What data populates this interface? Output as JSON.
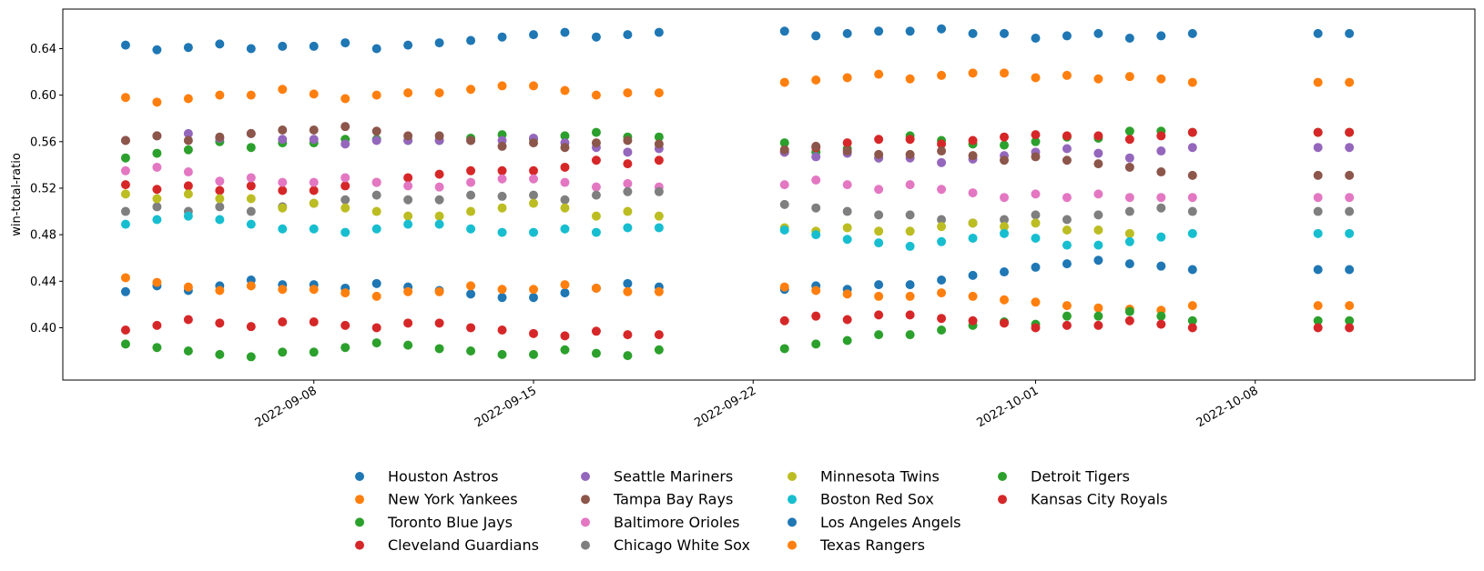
{
  "chart_data": {
    "type": "scatter",
    "title": "",
    "xlabel": "",
    "ylabel": "win-total-ratio",
    "x_axis": "date",
    "xlim": [
      "2022-08-31",
      "2022-10-15"
    ],
    "ylim": [
      0.355,
      0.674
    ],
    "x_ticks": [
      "2022-09-08",
      "2022-09-15",
      "2022-09-22",
      "2022-10-01",
      "2022-10-08"
    ],
    "y_ticks": [
      0.4,
      0.44,
      0.48,
      0.52,
      0.56,
      0.6,
      0.64
    ],
    "y_tick_labels": [
      "0.40",
      "0.44",
      "0.48",
      "0.52",
      "0.56",
      "0.60",
      "0.64"
    ],
    "grid": false,
    "legend_placement": "below, 4 columns",
    "x": [
      "2022-09-02",
      "2022-09-03",
      "2022-09-04",
      "2022-09-05",
      "2022-09-06",
      "2022-09-07",
      "2022-09-08",
      "2022-09-09",
      "2022-09-10",
      "2022-09-11",
      "2022-09-12",
      "2022-09-13",
      "2022-09-14",
      "2022-09-15",
      "2022-09-16",
      "2022-09-17",
      "2022-09-18",
      "2022-09-19",
      "2022-09-20",
      "2022-09-23",
      "2022-09-24",
      "2022-09-25",
      "2022-09-26",
      "2022-09-27",
      "2022-09-28",
      "2022-09-29",
      "2022-09-30",
      "2022-10-01",
      "2022-10-02",
      "2022-10-03",
      "2022-10-04",
      "2022-10-05",
      "2022-10-06",
      "2022-10-10",
      "2022-10-11"
    ],
    "series": [
      {
        "name": "Houston Astros",
        "color": "#1f77b4",
        "values": [
          0.643,
          0.639,
          0.641,
          0.644,
          0.64,
          0.642,
          0.642,
          0.645,
          0.64,
          0.643,
          0.645,
          0.647,
          0.65,
          0.652,
          0.654,
          0.65,
          0.652,
          0.654,
          null,
          0.655,
          0.651,
          0.653,
          0.655,
          0.655,
          0.657,
          0.653,
          0.653,
          0.649,
          0.651,
          0.653,
          0.649,
          0.651,
          0.653,
          0.653,
          0.653
        ]
      },
      {
        "name": "New York Yankees",
        "color": "#ff7f0e",
        "values": [
          0.598,
          0.594,
          0.597,
          0.6,
          0.6,
          0.605,
          0.601,
          0.597,
          0.6,
          0.602,
          0.602,
          0.605,
          0.608,
          0.608,
          0.604,
          0.6,
          0.602,
          0.602,
          null,
          0.611,
          0.613,
          0.615,
          0.618,
          0.614,
          0.617,
          0.619,
          0.619,
          0.615,
          0.617,
          0.614,
          0.616,
          0.614,
          0.611,
          0.611,
          0.611
        ]
      },
      {
        "name": "Toronto Blue Jays",
        "color": "#2ca02c",
        "values": [
          0.546,
          0.55,
          0.553,
          0.56,
          0.555,
          0.559,
          0.559,
          0.562,
          0.562,
          0.561,
          0.561,
          0.563,
          0.566,
          0.562,
          0.565,
          0.568,
          0.564,
          0.564,
          null,
          0.559,
          0.551,
          0.554,
          0.546,
          0.565,
          0.561,
          0.558,
          0.557,
          0.56,
          0.564,
          0.563,
          0.569,
          0.569,
          0.568,
          0.568,
          0.568
        ]
      },
      {
        "name": "Cleveland Guardians",
        "color": "#d62728",
        "values": [
          0.523,
          0.519,
          0.522,
          0.518,
          0.522,
          0.518,
          0.518,
          0.522,
          0.525,
          0.529,
          0.532,
          0.535,
          0.535,
          0.535,
          0.538,
          0.544,
          0.541,
          0.544,
          null,
          0.551,
          0.555,
          0.559,
          0.562,
          0.562,
          0.558,
          0.561,
          0.564,
          0.566,
          0.565,
          0.565,
          0.562,
          0.565,
          0.568,
          0.568,
          0.568
        ]
      },
      {
        "name": "Seattle Mariners",
        "color": "#9467bd",
        "values": [
          0.561,
          0.565,
          0.567,
          0.563,
          0.567,
          0.562,
          0.562,
          0.558,
          0.561,
          0.561,
          0.561,
          0.561,
          0.561,
          0.563,
          0.559,
          0.555,
          0.551,
          0.554,
          null,
          0.551,
          0.547,
          0.55,
          0.546,
          0.546,
          0.542,
          0.545,
          0.548,
          0.551,
          0.554,
          0.55,
          0.546,
          0.552,
          0.555,
          0.555,
          0.555
        ]
      },
      {
        "name": "Tampa Bay Rays",
        "color": "#8c564b",
        "values": [
          0.561,
          0.565,
          0.561,
          0.564,
          0.567,
          0.57,
          0.57,
          0.573,
          0.569,
          0.565,
          0.565,
          0.561,
          0.556,
          0.559,
          0.555,
          0.559,
          0.561,
          0.558,
          null,
          0.553,
          0.556,
          0.552,
          0.549,
          0.549,
          0.552,
          0.548,
          0.544,
          0.547,
          0.544,
          0.541,
          0.538,
          0.534,
          0.531,
          0.531,
          0.531
        ]
      },
      {
        "name": "Baltimore Orioles",
        "color": "#e377c2",
        "values": [
          0.535,
          0.538,
          0.534,
          0.526,
          0.529,
          0.525,
          0.525,
          0.529,
          0.525,
          0.522,
          0.521,
          0.525,
          0.528,
          0.528,
          0.525,
          0.521,
          0.524,
          0.521,
          null,
          0.523,
          0.527,
          0.523,
          0.519,
          0.523,
          0.519,
          0.516,
          0.512,
          0.515,
          0.512,
          0.515,
          0.512,
          0.512,
          0.512,
          0.512,
          0.512
        ]
      },
      {
        "name": "Chicago White Sox",
        "color": "#7f7f7f",
        "values": [
          0.5,
          0.504,
          0.5,
          0.504,
          0.5,
          0.504,
          0.507,
          0.51,
          0.514,
          0.51,
          0.51,
          0.514,
          0.513,
          0.514,
          0.51,
          0.514,
          0.517,
          0.517,
          null,
          0.506,
          0.503,
          0.5,
          0.497,
          0.497,
          0.493,
          0.49,
          0.493,
          0.497,
          0.493,
          0.497,
          0.5,
          0.503,
          0.5,
          0.5,
          0.5
        ]
      },
      {
        "name": "Minnesota Twins",
        "color": "#bcbd22",
        "values": [
          0.515,
          0.511,
          0.515,
          0.511,
          0.511,
          0.503,
          0.507,
          0.503,
          0.5,
          0.496,
          0.496,
          0.5,
          0.503,
          0.507,
          0.503,
          0.496,
          0.5,
          0.496,
          null,
          0.486,
          0.483,
          0.486,
          0.483,
          0.483,
          0.487,
          0.49,
          0.487,
          0.49,
          0.484,
          0.484,
          0.481,
          null,
          null,
          null,
          null
        ]
      },
      {
        "name": "Boston Red Sox",
        "color": "#17becf",
        "values": [
          0.489,
          0.493,
          0.496,
          0.493,
          0.489,
          0.485,
          0.485,
          0.482,
          0.485,
          0.489,
          0.489,
          0.485,
          0.482,
          0.482,
          0.485,
          0.482,
          0.486,
          0.486,
          null,
          0.484,
          0.48,
          0.476,
          0.473,
          0.47,
          0.474,
          0.477,
          0.481,
          0.477,
          0.471,
          0.471,
          0.474,
          0.478,
          0.481,
          0.481,
          0.481
        ]
      },
      {
        "name": "Los Angeles Angels",
        "color": "#1f77b4",
        "values": [
          0.431,
          0.436,
          0.432,
          0.436,
          0.441,
          0.437,
          0.437,
          0.434,
          0.438,
          0.435,
          0.432,
          0.429,
          0.426,
          0.426,
          0.43,
          0.434,
          0.438,
          0.435,
          null,
          0.433,
          0.436,
          0.433,
          0.437,
          0.437,
          0.441,
          0.445,
          0.448,
          0.452,
          0.455,
          0.458,
          0.455,
          0.453,
          0.45,
          0.45,
          0.45
        ]
      },
      {
        "name": "Texas Rangers",
        "color": "#ff7f0e",
        "values": [
          0.443,
          0.439,
          0.435,
          0.432,
          0.436,
          0.433,
          0.433,
          0.43,
          0.427,
          0.431,
          0.431,
          0.436,
          0.433,
          0.433,
          0.437,
          0.434,
          0.431,
          0.431,
          null,
          0.435,
          0.432,
          0.429,
          0.427,
          0.427,
          0.43,
          0.427,
          0.424,
          0.422,
          0.419,
          0.417,
          0.416,
          0.415,
          0.419,
          0.419,
          0.419
        ]
      },
      {
        "name": "Detroit Tigers",
        "color": "#2ca02c",
        "values": [
          0.386,
          0.383,
          0.38,
          0.377,
          0.375,
          0.379,
          0.379,
          0.383,
          0.387,
          0.385,
          0.382,
          0.38,
          0.377,
          0.377,
          0.381,
          0.378,
          0.376,
          0.381,
          null,
          0.382,
          0.386,
          0.389,
          0.394,
          0.394,
          0.398,
          0.402,
          0.405,
          0.403,
          0.41,
          0.41,
          0.414,
          0.41,
          0.406,
          0.406,
          0.406
        ]
      },
      {
        "name": "Kansas City Royals",
        "color": "#d62728",
        "values": [
          0.398,
          0.402,
          0.407,
          0.404,
          0.401,
          0.405,
          0.405,
          0.402,
          0.4,
          0.404,
          0.404,
          0.4,
          0.398,
          0.395,
          0.393,
          0.397,
          0.394,
          0.394,
          null,
          0.406,
          0.41,
          0.407,
          0.411,
          0.411,
          0.408,
          0.406,
          0.404,
          0.4,
          0.402,
          0.402,
          0.406,
          0.403,
          0.4,
          0.4,
          0.4
        ]
      }
    ]
  }
}
